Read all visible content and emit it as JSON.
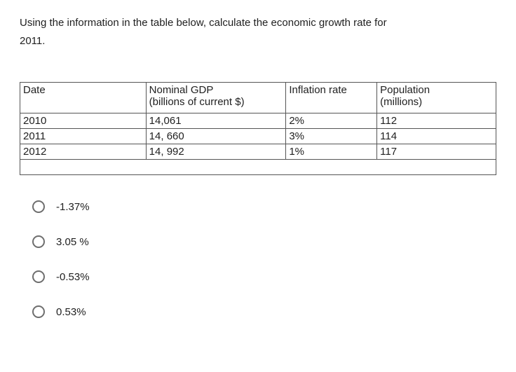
{
  "question_line1": "Using the information in the table below, calculate the economic growth rate for",
  "question_line2": "2011.",
  "table": {
    "headers": {
      "date": "Date",
      "gdp_line1": "Nominal GDP",
      "gdp_line2": "(billions of current $)",
      "inflation": "Inflation rate",
      "pop_line1": "Population",
      "pop_line2": "(millions)"
    },
    "rows": [
      {
        "date": "2010",
        "gdp": "14,061",
        "inflation": "2%",
        "population": "112"
      },
      {
        "date": "2011",
        "gdp": "14, 660",
        "inflation": "3%",
        "population": "114"
      },
      {
        "date": "2012",
        "gdp": "14, 992",
        "inflation": "1%",
        "population": "117"
      }
    ]
  },
  "options": [
    "-1.37%",
    "3.05 %",
    "-0.53%",
    "0.53%"
  ],
  "colors": {
    "text": "#212121",
    "border": "#555555",
    "radio_border": "#6e6e6e",
    "background": "#ffffff"
  }
}
